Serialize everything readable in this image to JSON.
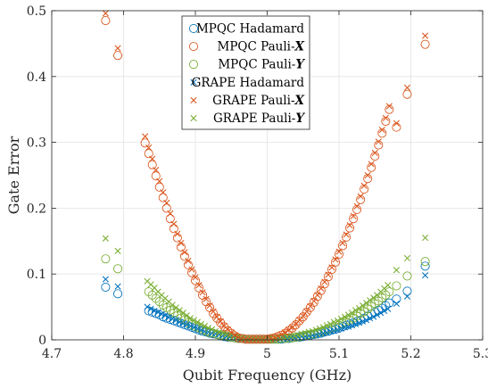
{
  "chart_data": {
    "type": "scatter",
    "xlabel": "Qubit Frequency (GHz)",
    "ylabel": "Gate Error",
    "xlim": [
      4.7,
      5.3
    ],
    "ylim": [
      0,
      0.5
    ],
    "xticks": [
      "4.7",
      "4.8",
      "4.9",
      "5",
      "5.1",
      "5.2",
      "5.3"
    ],
    "yticks": [
      "0",
      "0.1",
      "0.2",
      "0.3",
      "0.4",
      "0.5"
    ],
    "grid": true,
    "legend_position": "top-center",
    "colors": {
      "hadamard": "#0072BD",
      "pauli_x": "#D95319",
      "pauli_y": "#77AC30"
    },
    "series": [
      {
        "name": "MPQC Hadamard",
        "legend_prefix": "MPQC Hadamard",
        "legend_em": "",
        "marker": "circle",
        "color": "#0072BD",
        "x": [
          4.775,
          4.792,
          4.835,
          4.84,
          4.845,
          4.85,
          4.855,
          4.86,
          4.865,
          4.87,
          4.875,
          4.88,
          4.885,
          4.89,
          4.895,
          4.9,
          4.905,
          4.91,
          4.915,
          4.92,
          4.925,
          4.93,
          4.935,
          4.94,
          4.945,
          4.95,
          4.955,
          4.96,
          4.965,
          4.97,
          4.975,
          4.98,
          4.985,
          4.99,
          4.995,
          5.0,
          5.005,
          5.01,
          5.015,
          5.02,
          5.025,
          5.03,
          5.035,
          5.04,
          5.045,
          5.05,
          5.055,
          5.06,
          5.065,
          5.07,
          5.075,
          5.08,
          5.085,
          5.09,
          5.095,
          5.1,
          5.105,
          5.11,
          5.115,
          5.12,
          5.125,
          5.13,
          5.135,
          5.14,
          5.145,
          5.15,
          5.155,
          5.16,
          5.165,
          5.17,
          5.18,
          5.195,
          5.22
        ],
        "y": [
          0.08,
          0.07,
          0.044,
          0.042,
          0.04,
          0.038,
          0.035,
          0.033,
          0.031,
          0.029,
          0.027,
          0.025,
          0.023,
          0.021,
          0.019,
          0.017,
          0.015,
          0.013,
          0.012,
          0.01,
          0.009,
          0.008,
          0.006,
          0.005,
          0.004,
          0.004,
          0.003,
          0.002,
          0.002,
          0.001,
          0.001,
          0.001,
          0.001,
          0.001,
          0.001,
          0.001,
          0.001,
          0.001,
          0.001,
          0.001,
          0.002,
          0.002,
          0.003,
          0.004,
          0.004,
          0.005,
          0.006,
          0.007,
          0.008,
          0.009,
          0.01,
          0.012,
          0.013,
          0.015,
          0.016,
          0.018,
          0.02,
          0.022,
          0.024,
          0.026,
          0.028,
          0.03,
          0.033,
          0.036,
          0.039,
          0.042,
          0.045,
          0.048,
          0.052,
          0.056,
          0.062,
          0.074,
          0.112
        ]
      },
      {
        "name": "MPQC Pauli-X",
        "legend_prefix": "MPQC Pauli-",
        "legend_em": "X",
        "marker": "circle",
        "color": "#D95319",
        "x": [
          4.775,
          4.792,
          4.83,
          4.835,
          4.84,
          4.845,
          4.85,
          4.855,
          4.86,
          4.865,
          4.87,
          4.875,
          4.88,
          4.885,
          4.89,
          4.895,
          4.9,
          4.905,
          4.91,
          4.915,
          4.92,
          4.925,
          4.93,
          4.935,
          4.94,
          4.945,
          4.95,
          4.955,
          4.96,
          4.965,
          4.97,
          4.975,
          4.98,
          4.985,
          4.99,
          4.995,
          5.0,
          5.005,
          5.01,
          5.015,
          5.02,
          5.025,
          5.03,
          5.035,
          5.04,
          5.045,
          5.05,
          5.055,
          5.06,
          5.065,
          5.07,
          5.075,
          5.08,
          5.085,
          5.09,
          5.095,
          5.1,
          5.105,
          5.11,
          5.115,
          5.12,
          5.125,
          5.13,
          5.135,
          5.14,
          5.145,
          5.15,
          5.155,
          5.16,
          5.165,
          5.17,
          5.18,
          5.195,
          5.22
        ],
        "y": [
          0.485,
          0.432,
          0.299,
          0.283,
          0.266,
          0.249,
          0.232,
          0.216,
          0.2,
          0.184,
          0.169,
          0.155,
          0.141,
          0.127,
          0.114,
          0.102,
          0.09,
          0.079,
          0.068,
          0.058,
          0.049,
          0.04,
          0.033,
          0.026,
          0.02,
          0.014,
          0.01,
          0.006,
          0.003,
          0.002,
          0.001,
          0.001,
          0.001,
          0.001,
          0.001,
          0.001,
          0.001,
          0.002,
          0.003,
          0.005,
          0.007,
          0.01,
          0.014,
          0.018,
          0.023,
          0.029,
          0.035,
          0.042,
          0.049,
          0.057,
          0.066,
          0.075,
          0.085,
          0.096,
          0.107,
          0.118,
          0.13,
          0.143,
          0.156,
          0.17,
          0.184,
          0.198,
          0.213,
          0.229,
          0.245,
          0.262,
          0.279,
          0.296,
          0.314,
          0.332,
          0.35,
          0.323,
          0.373,
          0.449
        ]
      },
      {
        "name": "MPQC Pauli-Y",
        "legend_prefix": "MPQC Pauli-",
        "legend_em": "Y",
        "marker": "circle",
        "color": "#77AC30",
        "x": [
          4.775,
          4.792,
          4.835,
          4.84,
          4.845,
          4.85,
          4.855,
          4.86,
          4.865,
          4.87,
          4.875,
          4.88,
          4.885,
          4.89,
          4.895,
          4.9,
          4.905,
          4.91,
          4.915,
          4.92,
          4.925,
          4.93,
          4.935,
          4.94,
          4.945,
          4.95,
          4.955,
          4.96,
          4.965,
          4.97,
          4.975,
          4.98,
          4.985,
          4.99,
          4.995,
          5.0,
          5.005,
          5.01,
          5.015,
          5.02,
          5.025,
          5.03,
          5.035,
          5.04,
          5.045,
          5.05,
          5.055,
          5.06,
          5.065,
          5.07,
          5.075,
          5.08,
          5.085,
          5.09,
          5.095,
          5.1,
          5.105,
          5.11,
          5.115,
          5.12,
          5.125,
          5.13,
          5.135,
          5.14,
          5.145,
          5.15,
          5.155,
          5.16,
          5.165,
          5.17,
          5.18,
          5.195,
          5.22
        ],
        "y": [
          0.123,
          0.108,
          0.073,
          0.068,
          0.063,
          0.058,
          0.053,
          0.049,
          0.045,
          0.041,
          0.037,
          0.033,
          0.03,
          0.026,
          0.023,
          0.02,
          0.018,
          0.015,
          0.013,
          0.011,
          0.01,
          0.008,
          0.007,
          0.006,
          0.005,
          0.004,
          0.003,
          0.002,
          0.002,
          0.001,
          0.001,
          0.001,
          0.001,
          0.001,
          0.001,
          0.001,
          0.001,
          0.001,
          0.001,
          0.002,
          0.002,
          0.003,
          0.003,
          0.004,
          0.005,
          0.006,
          0.007,
          0.008,
          0.009,
          0.011,
          0.012,
          0.014,
          0.016,
          0.018,
          0.02,
          0.022,
          0.025,
          0.027,
          0.03,
          0.033,
          0.036,
          0.04,
          0.043,
          0.047,
          0.051,
          0.055,
          0.059,
          0.064,
          0.068,
          0.073,
          0.082,
          0.097,
          0.119
        ]
      },
      {
        "name": "GRAPE Hadamard",
        "legend_prefix": "GRAPE Hadamard",
        "legend_em": "",
        "marker": "x",
        "color": "#0072BD",
        "x": [
          4.775,
          4.792,
          4.833,
          4.838,
          4.843,
          4.848,
          4.853,
          4.858,
          4.863,
          4.868,
          4.873,
          4.878,
          4.883,
          4.888,
          4.893,
          4.898,
          4.903,
          4.908,
          4.913,
          4.918,
          4.923,
          4.928,
          4.933,
          4.938,
          4.943,
          4.948,
          4.953,
          4.958,
          4.963,
          4.968,
          4.973,
          4.978,
          4.983,
          4.988,
          4.993,
          4.998,
          5.003,
          5.008,
          5.013,
          5.018,
          5.023,
          5.028,
          5.033,
          5.038,
          5.043,
          5.048,
          5.053,
          5.058,
          5.063,
          5.068,
          5.073,
          5.078,
          5.083,
          5.088,
          5.093,
          5.098,
          5.103,
          5.108,
          5.113,
          5.118,
          5.123,
          5.128,
          5.133,
          5.138,
          5.143,
          5.148,
          5.153,
          5.158,
          5.163,
          5.168,
          5.18,
          5.195,
          5.22
        ],
        "y": [
          0.092,
          0.081,
          0.05,
          0.047,
          0.044,
          0.042,
          0.039,
          0.037,
          0.034,
          0.032,
          0.03,
          0.027,
          0.025,
          0.023,
          0.021,
          0.019,
          0.017,
          0.015,
          0.013,
          0.012,
          0.01,
          0.009,
          0.008,
          0.006,
          0.005,
          0.004,
          0.004,
          0.003,
          0.002,
          0.002,
          0.001,
          0.001,
          0.001,
          0.001,
          0.001,
          0.001,
          0.001,
          0.001,
          0.001,
          0.001,
          0.002,
          0.002,
          0.003,
          0.003,
          0.004,
          0.005,
          0.005,
          0.006,
          0.007,
          0.008,
          0.009,
          0.01,
          0.011,
          0.013,
          0.014,
          0.015,
          0.017,
          0.019,
          0.02,
          0.022,
          0.024,
          0.026,
          0.028,
          0.03,
          0.033,
          0.035,
          0.038,
          0.041,
          0.044,
          0.047,
          0.055,
          0.066,
          0.098
        ]
      },
      {
        "name": "GRAPE Pauli-X",
        "legend_prefix": "GRAPE Pauli-",
        "legend_em": "X",
        "marker": "x",
        "color": "#D95319",
        "x": [
          4.775,
          4.792,
          4.83,
          4.835,
          4.84,
          4.845,
          4.85,
          4.855,
          4.86,
          4.865,
          4.87,
          4.875,
          4.88,
          4.885,
          4.89,
          4.895,
          4.9,
          4.905,
          4.91,
          4.915,
          4.92,
          4.925,
          4.93,
          4.935,
          4.94,
          4.945,
          4.95,
          4.955,
          4.96,
          4.965,
          4.97,
          4.975,
          4.98,
          4.985,
          4.99,
          4.995,
          5.0,
          5.005,
          5.01,
          5.015,
          5.02,
          5.025,
          5.03,
          5.035,
          5.04,
          5.045,
          5.05,
          5.055,
          5.06,
          5.065,
          5.07,
          5.075,
          5.08,
          5.085,
          5.09,
          5.095,
          5.1,
          5.105,
          5.11,
          5.115,
          5.12,
          5.125,
          5.13,
          5.135,
          5.14,
          5.145,
          5.15,
          5.155,
          5.16,
          5.165,
          5.17,
          5.18,
          5.195,
          5.22
        ],
        "y": [
          0.496,
          0.443,
          0.309,
          0.292,
          0.275,
          0.258,
          0.241,
          0.224,
          0.208,
          0.192,
          0.176,
          0.161,
          0.147,
          0.133,
          0.12,
          0.107,
          0.095,
          0.083,
          0.072,
          0.062,
          0.052,
          0.043,
          0.035,
          0.028,
          0.021,
          0.016,
          0.011,
          0.007,
          0.004,
          0.002,
          0.001,
          0.001,
          0.001,
          0.001,
          0.001,
          0.001,
          0.001,
          0.002,
          0.004,
          0.006,
          0.008,
          0.011,
          0.015,
          0.019,
          0.024,
          0.03,
          0.036,
          0.043,
          0.051,
          0.059,
          0.068,
          0.078,
          0.088,
          0.099,
          0.11,
          0.122,
          0.134,
          0.147,
          0.16,
          0.174,
          0.188,
          0.203,
          0.218,
          0.234,
          0.25,
          0.267,
          0.284,
          0.301,
          0.319,
          0.337,
          0.355,
          0.329,
          0.383,
          0.462
        ]
      },
      {
        "name": "GRAPE Pauli-Y",
        "legend_prefix": "GRAPE Pauli-",
        "legend_em": "Y",
        "marker": "x",
        "color": "#77AC30",
        "x": [
          4.775,
          4.792,
          4.833,
          4.838,
          4.843,
          4.848,
          4.853,
          4.858,
          4.863,
          4.868,
          4.873,
          4.878,
          4.883,
          4.888,
          4.893,
          4.898,
          4.903,
          4.908,
          4.913,
          4.918,
          4.923,
          4.928,
          4.933,
          4.938,
          4.943,
          4.948,
          4.953,
          4.958,
          4.963,
          4.968,
          4.973,
          4.978,
          4.983,
          4.988,
          4.993,
          4.998,
          5.003,
          5.008,
          5.013,
          5.018,
          5.023,
          5.028,
          5.033,
          5.038,
          5.043,
          5.048,
          5.053,
          5.058,
          5.063,
          5.068,
          5.073,
          5.078,
          5.083,
          5.088,
          5.093,
          5.098,
          5.103,
          5.108,
          5.113,
          5.118,
          5.123,
          5.128,
          5.133,
          5.138,
          5.143,
          5.148,
          5.153,
          5.158,
          5.163,
          5.168,
          5.18,
          5.195,
          5.22
        ],
        "y": [
          0.154,
          0.135,
          0.089,
          0.084,
          0.079,
          0.073,
          0.068,
          0.063,
          0.058,
          0.053,
          0.049,
          0.045,
          0.041,
          0.037,
          0.033,
          0.03,
          0.027,
          0.024,
          0.021,
          0.018,
          0.016,
          0.013,
          0.011,
          0.01,
          0.008,
          0.006,
          0.005,
          0.004,
          0.003,
          0.002,
          0.002,
          0.001,
          0.001,
          0.001,
          0.001,
          0.001,
          0.001,
          0.001,
          0.002,
          0.002,
          0.003,
          0.004,
          0.005,
          0.006,
          0.007,
          0.009,
          0.01,
          0.012,
          0.013,
          0.015,
          0.017,
          0.019,
          0.022,
          0.024,
          0.027,
          0.029,
          0.032,
          0.035,
          0.038,
          0.041,
          0.045,
          0.048,
          0.052,
          0.056,
          0.06,
          0.064,
          0.068,
          0.073,
          0.078,
          0.083,
          0.106,
          0.124,
          0.155
        ]
      }
    ]
  }
}
